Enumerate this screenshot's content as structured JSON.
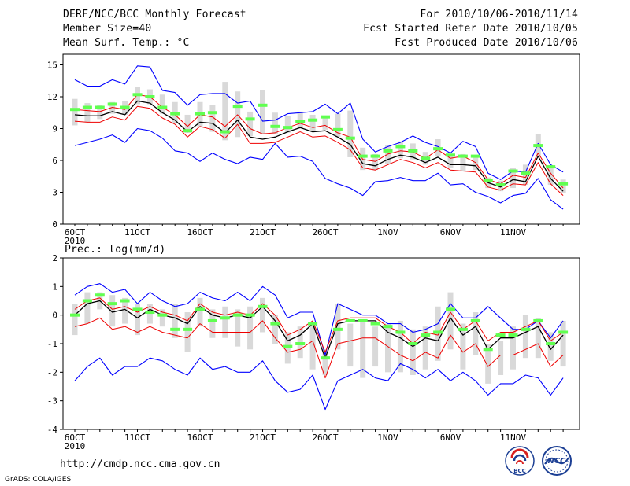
{
  "header": {
    "title": "DERF/NCC/BCC Monthly Forecast",
    "member": "Member Size=40",
    "variable": "Mean Surf. Temp.: °C",
    "period": "For 2010/10/06-2010/11/14",
    "started": "Fcst Started Refer Date 2010/10/05",
    "produced": "Fcst Produced Date 2010/10/06"
  },
  "footer": {
    "url": "http://cmdp.ncc.cma.gov.cn",
    "grads": "GrADS: COLA/IGES",
    "logo_bcc": "BCC",
    "logo_ncc": "NCC"
  },
  "colors": {
    "envelope": "#0000ff",
    "interval": "#ee0000",
    "mean": "#000000",
    "ensemble": "#60ff50",
    "box": "#d9d9d9"
  },
  "chart_data": [
    {
      "type": "line",
      "title": "Mean Surf. Temp.: °C",
      "xlabel": "",
      "ylabel": "Mean Surf. Temp. (°C)",
      "ylim": [
        0,
        16
      ],
      "yticks": [
        0,
        3,
        6,
        9,
        12,
        15
      ],
      "x_days": [
        0,
        1,
        2,
        3,
        4,
        5,
        6,
        7,
        8,
        9,
        10,
        11,
        12,
        13,
        14,
        15,
        16,
        17,
        18,
        19,
        20,
        21,
        22,
        23,
        24,
        25,
        26,
        27,
        28,
        29,
        30,
        31,
        32,
        33,
        34,
        35,
        36,
        37,
        38,
        39
      ],
      "xtick_days": [
        0,
        5,
        10,
        15,
        20,
        25,
        30,
        35
      ],
      "xtick_labels": [
        "6OCT",
        "11OCT",
        "16OCT",
        "21OCT",
        "26OCT",
        "1NOV",
        "6NOV",
        "11NOV"
      ],
      "xtick_year": "2010",
      "series": [
        {
          "name": "max",
          "values": [
            13.6,
            13.0,
            13.0,
            13.6,
            13.2,
            14.9,
            14.8,
            12.6,
            12.4,
            11.2,
            12.2,
            12.3,
            12.3,
            11.4,
            11.6,
            9.7,
            9.8,
            10.4,
            10.5,
            10.6,
            11.3,
            10.4,
            11.4,
            8.0,
            6.8,
            7.3,
            7.7,
            8.3,
            7.7,
            7.3,
            6.7,
            7.8,
            7.3,
            4.8,
            4.2,
            5.0,
            4.9,
            7.6,
            5.6,
            4.9
          ]
        },
        {
          "name": "upper",
          "values": [
            10.8,
            10.7,
            10.6,
            11.0,
            10.8,
            12.2,
            12.0,
            11.0,
            10.3,
            9.2,
            10.3,
            10.1,
            9.2,
            10.3,
            9.0,
            8.5,
            8.6,
            9.1,
            9.5,
            9.1,
            9.3,
            8.6,
            8.2,
            6.1,
            5.9,
            6.6,
            6.9,
            6.8,
            6.2,
            7.0,
            6.2,
            6.4,
            5.8,
            4.2,
            3.8,
            4.6,
            4.4,
            6.7,
            4.8,
            3.4
          ]
        },
        {
          "name": "mean",
          "values": [
            10.3,
            10.2,
            10.2,
            10.6,
            10.3,
            11.6,
            11.4,
            10.5,
            9.8,
            8.7,
            9.6,
            9.5,
            8.6,
            9.8,
            8.2,
            8.0,
            8.2,
            8.7,
            9.1,
            8.7,
            8.8,
            8.2,
            7.5,
            5.7,
            5.5,
            6.1,
            6.5,
            6.3,
            5.8,
            6.3,
            5.6,
            5.6,
            5.5,
            3.9,
            3.5,
            4.2,
            4.0,
            6.4,
            4.3,
            3.1
          ]
        },
        {
          "name": "lower",
          "values": [
            9.7,
            9.6,
            9.6,
            10.1,
            9.8,
            11.1,
            10.9,
            10.0,
            9.4,
            8.2,
            9.2,
            8.9,
            8.1,
            9.4,
            7.6,
            7.6,
            7.7,
            8.2,
            8.7,
            8.2,
            8.3,
            7.7,
            7.0,
            5.3,
            5.1,
            5.6,
            6.1,
            5.8,
            5.3,
            5.8,
            5.1,
            5.0,
            4.9,
            3.5,
            3.2,
            3.8,
            3.7,
            5.8,
            3.8,
            2.7
          ]
        },
        {
          "name": "min",
          "values": [
            7.4,
            7.7,
            8.0,
            8.4,
            7.7,
            9.0,
            8.8,
            8.1,
            6.9,
            6.7,
            5.9,
            6.7,
            6.1,
            5.7,
            6.3,
            6.1,
            7.6,
            6.3,
            6.4,
            5.9,
            4.3,
            3.8,
            3.4,
            2.7,
            4.0,
            4.1,
            4.4,
            4.1,
            4.1,
            4.8,
            3.7,
            3.8,
            3.0,
            2.6,
            2.0,
            2.7,
            2.9,
            4.3,
            2.3,
            1.4
          ]
        }
      ],
      "boxes": [
        [
          9.3,
          11.8
        ],
        [
          9.6,
          11.4
        ],
        [
          9.9,
          11.2
        ],
        [
          10.4,
          11.5
        ],
        [
          10.3,
          11.6
        ],
        [
          11.3,
          12.9
        ],
        [
          11.3,
          12.7
        ],
        [
          10.4,
          12.2
        ],
        [
          9.5,
          11.5
        ],
        [
          8.6,
          10.3
        ],
        [
          9.2,
          11.5
        ],
        [
          8.7,
          11.2
        ],
        [
          7.9,
          13.4
        ],
        [
          8.2,
          12.5
        ],
        [
          8.3,
          10.6
        ],
        [
          8.5,
          12.6
        ],
        [
          8.5,
          10.5
        ],
        [
          8.6,
          10.2
        ],
        [
          9.0,
          10.6
        ],
        [
          8.8,
          10.3
        ],
        [
          8.9,
          10.2
        ],
        [
          8.2,
          10.4
        ],
        [
          6.3,
          10.7
        ],
        [
          5.1,
          7.2
        ],
        [
          5.1,
          6.6
        ],
        [
          5.7,
          7.4
        ],
        [
          6.2,
          7.8
        ],
        [
          6.1,
          7.6
        ],
        [
          5.6,
          6.8
        ],
        [
          6.4,
          8.0
        ],
        [
          5.3,
          6.6
        ],
        [
          5.0,
          6.6
        ],
        [
          5.1,
          6.5
        ],
        [
          3.4,
          4.4
        ],
        [
          3.1,
          4.1
        ],
        [
          3.4,
          5.3
        ],
        [
          3.7,
          5.6
        ],
        [
          6.3,
          8.5
        ],
        [
          3.7,
          5.5
        ],
        [
          2.9,
          4.2
        ]
      ],
      "ensemble_marks": [
        10.8,
        11.0,
        11.0,
        11.3,
        11.0,
        12.2,
        12.0,
        11.0,
        10.4,
        8.8,
        10.4,
        10.5,
        8.7,
        11.1,
        9.9,
        11.2,
        9.2,
        9.1,
        9.7,
        9.8,
        10.1,
        8.9,
        8.1,
        6.4,
        6.4,
        6.9,
        7.3,
        6.9,
        6.2,
        7.1,
        6.5,
        6.4,
        6.4,
        4.1,
        3.7,
        5.0,
        4.8,
        7.4,
        5.4,
        3.8
      ]
    },
    {
      "type": "line",
      "title": "Prec.: log(mm/d)",
      "xlabel": "",
      "ylabel": "Prec. log(mm/d)",
      "ylim": [
        -4,
        2
      ],
      "yticks": [
        -4,
        -3,
        -2,
        -1,
        0,
        1,
        2
      ],
      "x_days": [
        0,
        1,
        2,
        3,
        4,
        5,
        6,
        7,
        8,
        9,
        10,
        11,
        12,
        13,
        14,
        15,
        16,
        17,
        18,
        19,
        20,
        21,
        22,
        23,
        24,
        25,
        26,
        27,
        28,
        29,
        30,
        31,
        32,
        33,
        34,
        35,
        36,
        37,
        38,
        39
      ],
      "xtick_days": [
        0,
        5,
        10,
        15,
        20,
        25,
        30,
        35
      ],
      "xtick_labels": [
        "6OCT",
        "11OCT",
        "16OCT",
        "21OCT",
        "26OCT",
        "1NOV",
        "6NOV",
        "11NOV"
      ],
      "xtick_year": "2010",
      "series": [
        {
          "name": "max",
          "values": [
            0.7,
            1.0,
            1.1,
            0.8,
            0.9,
            0.4,
            0.8,
            0.5,
            0.3,
            0.4,
            0.8,
            0.6,
            0.5,
            0.8,
            0.5,
            1.0,
            0.7,
            -0.1,
            0.1,
            0.1,
            -1.4,
            0.4,
            0.2,
            0.0,
            0.0,
            -0.3,
            -0.3,
            -0.6,
            -0.5,
            -0.3,
            0.4,
            -0.1,
            -0.1,
            0.3,
            -0.1,
            -0.5,
            -0.5,
            -0.2,
            -0.8,
            -0.2
          ]
        },
        {
          "name": "upper",
          "values": [
            0.2,
            0.5,
            0.6,
            0.2,
            0.3,
            0.1,
            0.3,
            0.1,
            0.0,
            -0.2,
            0.4,
            0.1,
            0.0,
            0.1,
            0.0,
            0.4,
            0.0,
            -0.7,
            -0.5,
            -0.2,
            -1.3,
            -0.2,
            -0.1,
            -0.1,
            -0.1,
            -0.4,
            -0.6,
            -1.0,
            -0.6,
            -0.7,
            0.1,
            -0.5,
            -0.2,
            -0.9,
            -0.6,
            -0.6,
            -0.4,
            -0.2,
            -0.9,
            -0.6
          ]
        },
        {
          "name": "mean",
          "values": [
            0.0,
            0.4,
            0.5,
            0.1,
            0.2,
            -0.1,
            0.2,
            0.0,
            -0.1,
            -0.3,
            0.3,
            0.0,
            -0.1,
            0.0,
            -0.1,
            0.3,
            -0.2,
            -0.9,
            -0.7,
            -0.3,
            -1.5,
            -0.3,
            -0.2,
            -0.2,
            -0.2,
            -0.6,
            -0.8,
            -1.1,
            -0.8,
            -0.9,
            -0.1,
            -0.7,
            -0.4,
            -1.2,
            -0.8,
            -0.8,
            -0.6,
            -0.4,
            -1.2,
            -0.7
          ]
        },
        {
          "name": "lower",
          "values": [
            -0.4,
            -0.3,
            -0.1,
            -0.5,
            -0.4,
            -0.6,
            -0.4,
            -0.6,
            -0.7,
            -0.8,
            -0.3,
            -0.6,
            -0.6,
            -0.6,
            -0.6,
            -0.2,
            -0.8,
            -1.3,
            -1.2,
            -0.9,
            -2.2,
            -1.0,
            -0.9,
            -0.8,
            -0.8,
            -1.1,
            -1.4,
            -1.6,
            -1.3,
            -1.5,
            -0.7,
            -1.3,
            -1.0,
            -1.8,
            -1.4,
            -1.4,
            -1.2,
            -1.0,
            -1.8,
            -1.4
          ]
        },
        {
          "name": "min",
          "values": [
            -2.3,
            -1.8,
            -1.5,
            -2.1,
            -1.8,
            -1.8,
            -1.5,
            -1.6,
            -1.9,
            -2.1,
            -1.5,
            -1.9,
            -1.8,
            -2.0,
            -2.0,
            -1.6,
            -2.3,
            -2.7,
            -2.6,
            -2.1,
            -3.3,
            -2.3,
            -2.1,
            -1.9,
            -2.2,
            -2.3,
            -1.7,
            -1.9,
            -2.2,
            -1.9,
            -2.3,
            -2.0,
            -2.3,
            -2.8,
            -2.4,
            -2.4,
            -2.1,
            -2.2,
            -2.8,
            -2.2
          ]
        }
      ],
      "boxes": [
        [
          -0.7,
          0.4
        ],
        [
          -0.3,
          0.8
        ],
        [
          0.2,
          0.8
        ],
        [
          -0.4,
          0.7
        ],
        [
          -0.3,
          0.6
        ],
        [
          -0.7,
          0.4
        ],
        [
          -0.3,
          0.4
        ],
        [
          -0.4,
          0.2
        ],
        [
          -0.8,
          0.4
        ],
        [
          -1.3,
          0.1
        ],
        [
          -0.4,
          0.6
        ],
        [
          -0.8,
          0.2
        ],
        [
          -0.8,
          0.3
        ],
        [
          -1.1,
          0.2
        ],
        [
          -1.2,
          0.3
        ],
        [
          -0.6,
          0.6
        ],
        [
          -1.0,
          0.0
        ],
        [
          -1.7,
          -0.6
        ],
        [
          -1.5,
          -0.4
        ],
        [
          -1.9,
          -0.3
        ],
        [
          -2.1,
          -1.2
        ],
        [
          -1.2,
          0.4
        ],
        [
          -1.8,
          -0.3
        ],
        [
          -2.2,
          -0.2
        ],
        [
          -1.8,
          -0.4
        ],
        [
          -2.0,
          -0.3
        ],
        [
          -2.0,
          -0.2
        ],
        [
          -2.1,
          -0.5
        ],
        [
          -1.9,
          -0.4
        ],
        [
          -1.6,
          0.3
        ],
        [
          -1.2,
          0.8
        ],
        [
          -1.9,
          -0.3
        ],
        [
          -1.4,
          0.1
        ],
        [
          -2.4,
          -1.0
        ],
        [
          -2.1,
          -0.9
        ],
        [
          -1.9,
          -0.4
        ],
        [
          -1.5,
          0.0
        ],
        [
          -1.5,
          -0.1
        ],
        [
          -1.6,
          -0.6
        ],
        [
          -1.8,
          -0.2
        ]
      ],
      "ensemble_marks": [
        0.0,
        0.5,
        0.7,
        0.4,
        0.5,
        0.2,
        0.1,
        0.0,
        -0.5,
        -0.5,
        0.2,
        -0.2,
        -0.1,
        0.0,
        0.0,
        0.3,
        -0.3,
        -1.1,
        -1.0,
        -0.3,
        -1.5,
        -0.5,
        -0.2,
        -0.2,
        -0.3,
        -0.4,
        -0.6,
        -1.0,
        -0.7,
        -0.6,
        0.2,
        -0.5,
        -0.2,
        -1.2,
        -0.7,
        -0.7,
        -0.5,
        -0.2,
        -1.0,
        -0.6
      ]
    }
  ]
}
